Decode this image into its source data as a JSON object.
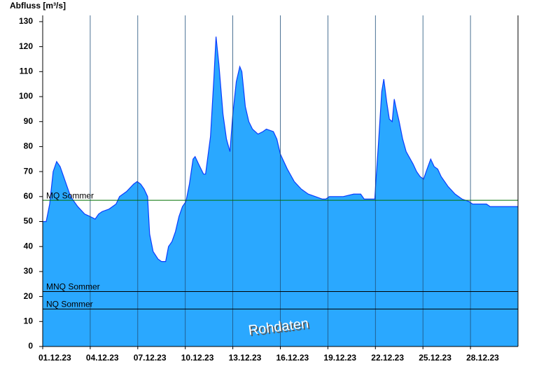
{
  "chart_data": {
    "type": "area",
    "title": "Abfluss [m³/s]",
    "x": [
      0,
      0.22,
      0.44,
      0.66,
      0.88,
      1.1,
      1.32,
      1.54,
      1.76,
      2.21,
      2.65,
      3.0,
      3.31,
      3.53,
      3.75,
      4.19,
      4.63,
      4.85,
      5.29,
      5.74,
      5.96,
      6.18,
      6.4,
      6.62,
      6.75,
      6.97,
      7.28,
      7.5,
      7.76,
      7.94,
      8.16,
      8.38,
      8.6,
      8.82,
      9.04,
      9.26,
      9.49,
      9.62,
      9.84,
      10.15,
      10.28,
      10.59,
      10.81,
      10.94,
      11.12,
      11.38,
      11.6,
      11.82,
      12.0,
      12.22,
      12.44,
      12.57,
      12.79,
      13.01,
      13.24,
      13.59,
      13.9,
      14.12,
      14.56,
      14.78,
      15.0,
      15.44,
      15.88,
      16.32,
      16.76,
      17.21,
      17.65,
      17.87,
      18.09,
      18.97,
      19.63,
      20.07,
      20.29,
      20.96,
      21.04,
      21.18,
      21.4,
      21.53,
      21.71,
      21.88,
      22.06,
      22.19,
      22.32,
      22.5,
      22.72,
      22.94,
      23.38,
      23.6,
      23.82,
      24.04,
      24.26,
      24.49,
      24.71,
      24.93,
      25.15,
      25.59,
      26.03,
      26.47,
      26.91,
      27.13,
      28.01,
      28.24,
      30
    ],
    "values": [
      50,
      50,
      57,
      70,
      74,
      72,
      68,
      64,
      60,
      56,
      53,
      52,
      51,
      53,
      54,
      55,
      57,
      60,
      62,
      65,
      66,
      65,
      63,
      60,
      45,
      38,
      35,
      34,
      34,
      40,
      42,
      46,
      52,
      56,
      58,
      65,
      75,
      76,
      73,
      69,
      69,
      84,
      108,
      124,
      113,
      93,
      83,
      78,
      93,
      106,
      112,
      110,
      96,
      90,
      87,
      85,
      86,
      87,
      86,
      83,
      77,
      71,
      66,
      63,
      61,
      60,
      59,
      59,
      60,
      60,
      61,
      61,
      59,
      59,
      67,
      80,
      102,
      107,
      98,
      91,
      90,
      99,
      95,
      90,
      83,
      78,
      73,
      70,
      68,
      67,
      71,
      75,
      72,
      71,
      68,
      64,
      61,
      59,
      58,
      57,
      57,
      56,
      56
    ],
    "color": "#2aa8ff",
    "line_color": "#0a3cff",
    "xlim": [
      0,
      30
    ],
    "xticks": [
      {
        "value": 0,
        "label": "01.12.23"
      },
      {
        "value": 3,
        "label": "04.12.23"
      },
      {
        "value": 6,
        "label": "07.12.23"
      },
      {
        "value": 9,
        "label": "10.12.23"
      },
      {
        "value": 12,
        "label": "13.12.23"
      },
      {
        "value": 15,
        "label": "16.12.23"
      },
      {
        "value": 18,
        "label": "19.12.23"
      },
      {
        "value": 21,
        "label": "22.12.23"
      },
      {
        "value": 24,
        "label": "25.12.23"
      },
      {
        "value": 27,
        "label": "28.12.23"
      }
    ],
    "ylim": [
      0,
      132.5
    ],
    "yticks": [
      0,
      10,
      20,
      30,
      40,
      50,
      60,
      70,
      80,
      90,
      100,
      110,
      120,
      130
    ],
    "grid": true,
    "reference_lines": [
      {
        "label": "MQ Sommer",
        "value": 58.5,
        "color": "#007000"
      },
      {
        "label": "MNQ Sommer",
        "value": 22,
        "color": "#000000"
      },
      {
        "label": "NQ Sommer",
        "value": 15,
        "color": "#000000"
      }
    ],
    "watermark": "Rohdaten"
  }
}
